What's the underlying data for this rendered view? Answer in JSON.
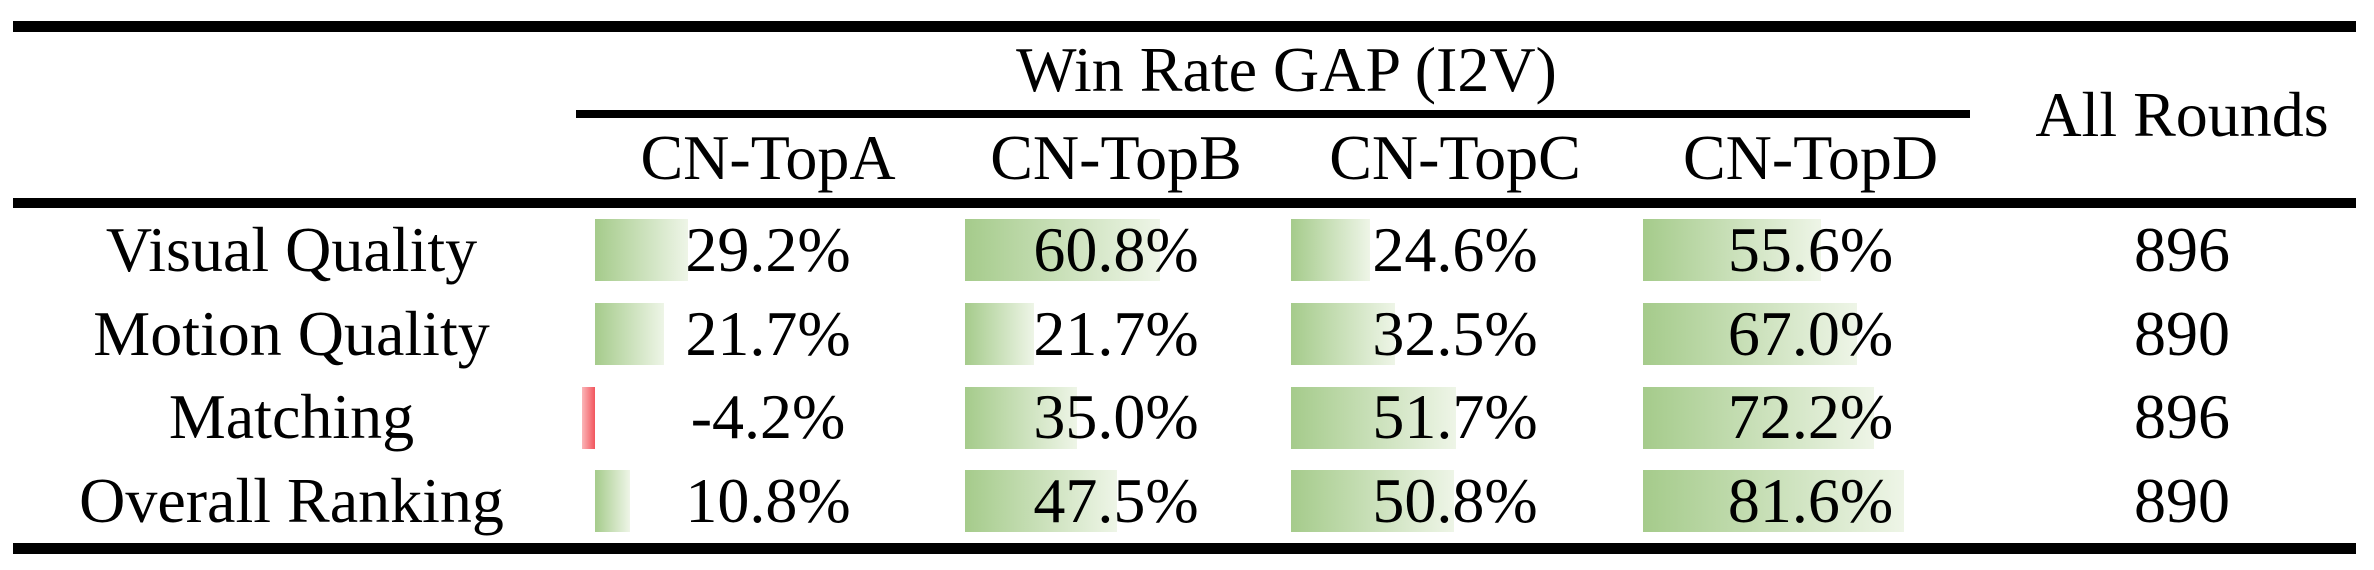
{
  "table": {
    "group_header": "Win Rate GAP (I2V)",
    "all_rounds_header": "All Rounds",
    "columns": [
      "CN-TopA",
      "CN-TopB",
      "CN-TopC",
      "CN-TopD"
    ],
    "rows": [
      {
        "metric": "Visual Quality",
        "cells": [
          {
            "text": "29.2%",
            "value": 29.2
          },
          {
            "text": "60.8%",
            "value": 60.8
          },
          {
            "text": "24.6%",
            "value": 24.6
          },
          {
            "text": "55.6%",
            "value": 55.6
          }
        ],
        "all_rounds": "896"
      },
      {
        "metric": "Motion Quality",
        "cells": [
          {
            "text": "21.7%",
            "value": 21.7
          },
          {
            "text": "21.7%",
            "value": 21.7
          },
          {
            "text": "32.5%",
            "value": 32.5
          },
          {
            "text": "67.0%",
            "value": 67.0
          }
        ],
        "all_rounds": "890"
      },
      {
        "metric": "Matching",
        "cells": [
          {
            "text": "-4.2%",
            "value": -4.2
          },
          {
            "text": "35.0%",
            "value": 35.0
          },
          {
            "text": "51.7%",
            "value": 51.7
          },
          {
            "text": "72.2%",
            "value": 72.2
          }
        ],
        "all_rounds": "896"
      },
      {
        "metric": "Overall Ranking",
        "cells": [
          {
            "text": "10.8%",
            "value": 10.8
          },
          {
            "text": "47.5%",
            "value": 47.5
          },
          {
            "text": "50.8%",
            "value": 50.8
          },
          {
            "text": "81.6%",
            "value": 81.6
          }
        ],
        "all_rounds": "890"
      }
    ],
    "colors": {
      "rule": "#000000",
      "bar_positive_left": "#a5cb8b",
      "bar_positive_right": "#eef5e7",
      "bar_negative_left": "#fbb6b9",
      "bar_negative_right": "#f2555d"
    }
  },
  "chart_data": {
    "type": "table",
    "title": "Win Rate GAP (I2V)",
    "categories": [
      "Visual Quality",
      "Motion Quality",
      "Matching",
      "Overall Ranking"
    ],
    "series": [
      {
        "name": "CN-TopA",
        "values": [
          29.2,
          21.7,
          -4.2,
          10.8
        ]
      },
      {
        "name": "CN-TopB",
        "values": [
          60.8,
          21.7,
          35.0,
          47.5
        ]
      },
      {
        "name": "CN-TopC",
        "values": [
          24.6,
          32.5,
          51.7,
          50.8
        ]
      },
      {
        "name": "CN-TopD",
        "values": [
          55.6,
          67.0,
          72.2,
          81.6
        ]
      }
    ],
    "extra_column": {
      "name": "All Rounds",
      "values": [
        896,
        890,
        896,
        890
      ]
    },
    "units": "percent win-rate gap, green bars positive / red bar negative, bar length proportional to value"
  }
}
